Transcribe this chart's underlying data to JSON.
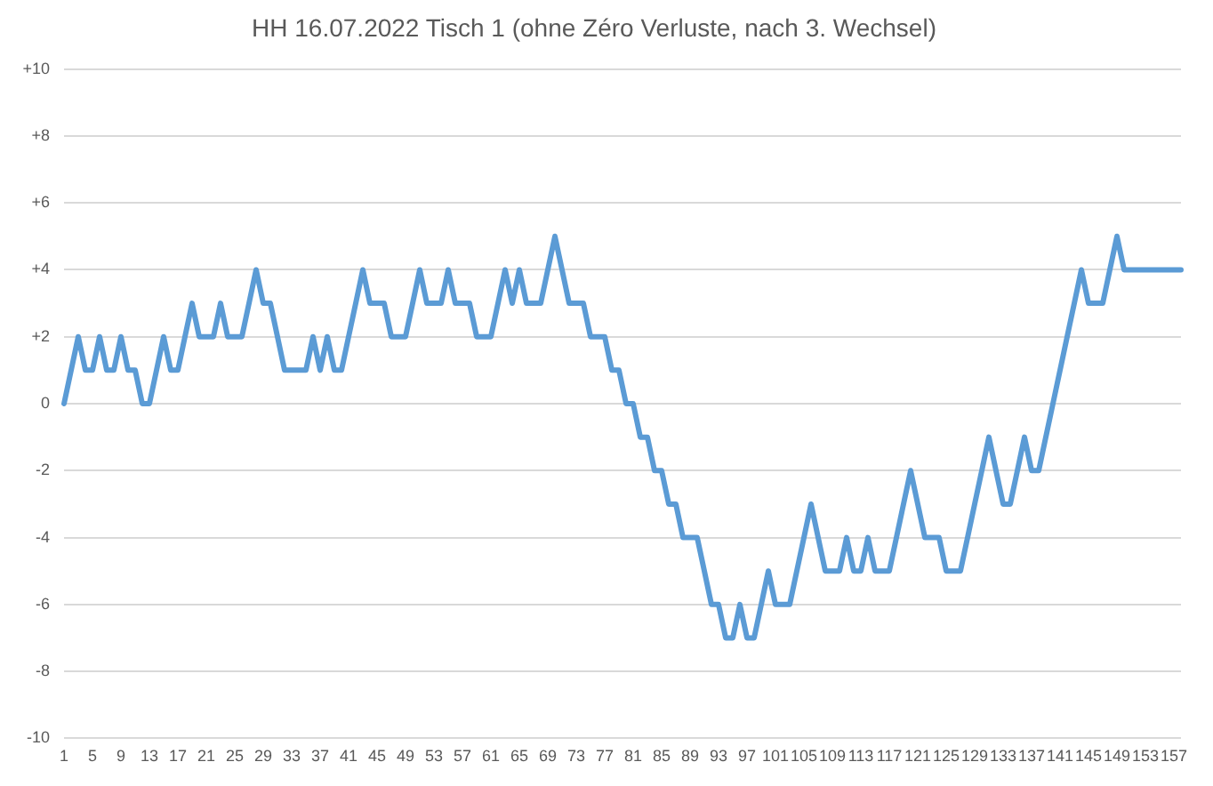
{
  "chart_data": {
    "type": "line",
    "title": "HH 16.07.2022 Tisch 1 (ohne Zéro Verluste, nach 3. Wechsel)",
    "categories": [
      "1",
      null,
      null,
      null,
      "5",
      null,
      null,
      null,
      "9",
      null,
      null,
      null,
      "13",
      null,
      null,
      null,
      "17",
      null,
      null,
      null,
      "21",
      null,
      null,
      null,
      "25",
      null,
      null,
      null,
      "29",
      null,
      null,
      null,
      "33",
      null,
      null,
      null,
      "37",
      null,
      null,
      null,
      "41",
      null,
      null,
      null,
      "45",
      null,
      null,
      null,
      "49",
      null,
      null,
      null,
      "53",
      null,
      null,
      null,
      "57",
      null,
      null,
      null,
      "61",
      null,
      null,
      null,
      "65",
      null,
      null,
      null,
      "69",
      null,
      null,
      null,
      "73",
      null,
      null,
      null,
      "77",
      null,
      null,
      null,
      "81",
      null,
      null,
      null,
      "85",
      null,
      null,
      null,
      "89",
      null,
      null,
      null,
      "93",
      null,
      null,
      null,
      "97",
      null,
      null,
      null,
      "101",
      null,
      null,
      null,
      "105",
      null,
      null,
      null,
      "109",
      null,
      null,
      null,
      "113",
      null,
      null,
      null,
      "117",
      null,
      null,
      null,
      "121",
      null,
      null,
      null,
      "125",
      null,
      null,
      null,
      "129",
      null,
      null,
      null,
      "133",
      null,
      null,
      null,
      "137",
      null,
      null,
      null,
      "141",
      null,
      null,
      null,
      "145",
      null,
      null,
      null,
      "149",
      null,
      null,
      null,
      "153",
      null,
      null,
      null,
      "157",
      null
    ],
    "series": [
      {
        "color": "#5b9bd5",
        "values": [
          0,
          1,
          2,
          1,
          1,
          2,
          1,
          1,
          2,
          1,
          1,
          0,
          0,
          1,
          2,
          1,
          1,
          2,
          3,
          2,
          2,
          2,
          3,
          2,
          2,
          2,
          3,
          4,
          3,
          3,
          2,
          1,
          1,
          1,
          1,
          2,
          1,
          2,
          1,
          1,
          2,
          3,
          4,
          3,
          3,
          3,
          2,
          2,
          2,
          3,
          4,
          3,
          3,
          3,
          4,
          3,
          3,
          3,
          2,
          2,
          2,
          3,
          4,
          3,
          4,
          3,
          3,
          3,
          4,
          5,
          4,
          3,
          3,
          3,
          2,
          2,
          2,
          1,
          1,
          0,
          0,
          -1,
          -1,
          -2,
          -2,
          -3,
          -3,
          -4,
          -4,
          -4,
          -5,
          -6,
          -6,
          -7,
          -7,
          -6,
          -7,
          -7,
          -6,
          -5,
          -6,
          -6,
          -6,
          -5,
          -4,
          -3,
          -4,
          -5,
          -5,
          -5,
          -4,
          -5,
          -5,
          -4,
          -5,
          -5,
          -5,
          -4,
          -3,
          -2,
          -3,
          -4,
          -4,
          -4,
          -5,
          -5,
          -5,
          -4,
          -3,
          -2,
          -1,
          -2,
          -3,
          -3,
          -2,
          -1,
          -2,
          -2,
          -1,
          0,
          1,
          2,
          3,
          4,
          3,
          3,
          3,
          4,
          5,
          4,
          4,
          4,
          4,
          4,
          4,
          4,
          4,
          4
        ]
      }
    ],
    "ylim": [
      -10,
      10
    ],
    "yticks": [
      {
        "value": -10,
        "label": "-10"
      },
      {
        "value": -8,
        "label": "-8"
      },
      {
        "value": -6,
        "label": "-6"
      },
      {
        "value": -4,
        "label": "-4"
      },
      {
        "value": -2,
        "label": "-2"
      },
      0,
      {
        "value": 2,
        "label": "+2"
      },
      {
        "value": 4,
        "label": "+4"
      },
      {
        "value": 6,
        "label": "+6"
      },
      {
        "value": 8,
        "label": "+8"
      },
      {
        "value": 10,
        "label": "+10"
      }
    ],
    "grid": "y",
    "legend": false,
    "marker": "none",
    "line_style": "solid"
  }
}
